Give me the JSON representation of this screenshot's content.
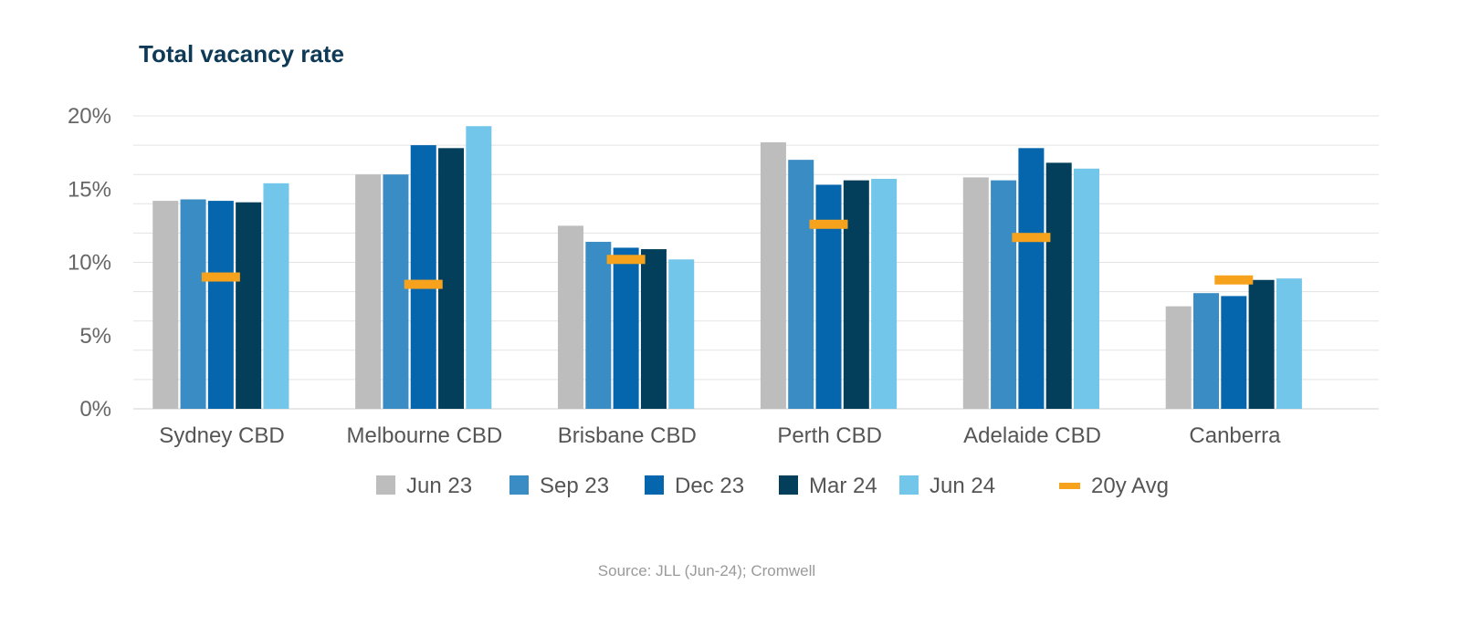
{
  "chart_data": {
    "type": "bar",
    "title": "Total vacancy rate",
    "source": "Source: JLL (Jun-24); Cromwell",
    "categories": [
      "Sydney CBD",
      "Melbourne CBD",
      "Brisbane CBD",
      "Perth CBD",
      "Adelaide CBD",
      "Canberra"
    ],
    "series": [
      {
        "name": "Jun 23",
        "color": "#bdbdbd",
        "values": [
          14.2,
          16.0,
          12.5,
          18.2,
          15.8,
          7.0
        ]
      },
      {
        "name": "Sep 23",
        "color": "#3a8cc4",
        "values": [
          14.3,
          16.0,
          11.4,
          17.0,
          15.6,
          7.9
        ]
      },
      {
        "name": "Dec 23",
        "color": "#0566ae",
        "values": [
          14.2,
          18.0,
          11.0,
          15.3,
          17.8,
          7.7
        ]
      },
      {
        "name": "Mar 24",
        "color": "#033f5a",
        "values": [
          14.1,
          17.8,
          10.9,
          15.6,
          16.8,
          8.8
        ]
      },
      {
        "name": "Jun 24",
        "color": "#72c6e9",
        "values": [
          15.4,
          19.3,
          10.2,
          15.7,
          16.4,
          8.9
        ]
      }
    ],
    "avg": {
      "name": "20y Avg",
      "color": "#f7a21d",
      "values": [
        9.0,
        8.5,
        10.2,
        12.6,
        11.7,
        8.8
      ]
    },
    "ylim": [
      0,
      20
    ],
    "yticks": [
      "0%",
      "5%",
      "10%",
      "15%",
      "20%"
    ],
    "ytick_values": [
      0,
      5,
      10,
      15,
      20
    ],
    "grid_step": 2,
    "grid": true,
    "legend_position": "bottom"
  }
}
